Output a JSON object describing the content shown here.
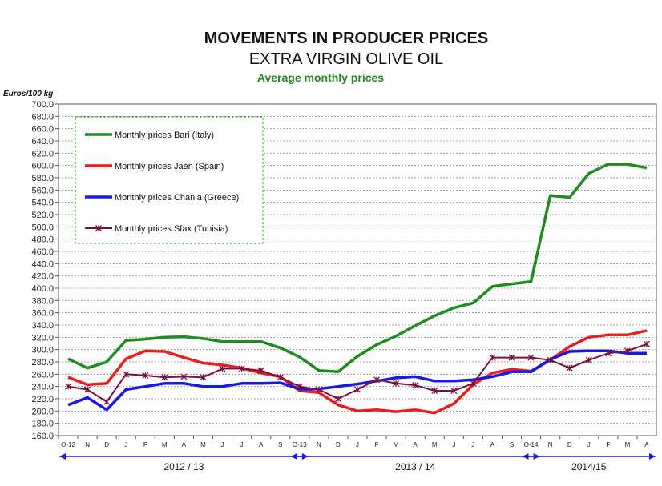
{
  "chart_data": {
    "type": "line",
    "title": "MOVEMENTS IN PRODUCER PRICES",
    "subtitle": "EXTRA VIRGIN OLIVE OIL",
    "subtitle2": "Average monthly prices",
    "ylabel": "Euros/100 kg",
    "ylim": [
      160,
      700
    ],
    "ytick_step": 20,
    "grid": true,
    "legend_position": "top-left",
    "x_labels": [
      "O-12",
      "N",
      "D",
      "J",
      "F",
      "M",
      "A",
      "M",
      "J",
      "J",
      "A",
      "S",
      "O-13",
      "N",
      "D",
      "J",
      "F",
      "M",
      "A",
      "M",
      "J",
      "J",
      "A",
      "S",
      "O-14",
      "N",
      "D",
      "J",
      "F",
      "M",
      "A"
    ],
    "periods": [
      {
        "label": "2012 / 13",
        "start": 0,
        "end": 12
      },
      {
        "label": "2013 / 14",
        "start": 12,
        "end": 24
      },
      {
        "label": "2014/15",
        "start": 24,
        "end": 30
      }
    ],
    "series": [
      {
        "name": "Monthly prices Bari (Italy)",
        "color": "#1f8c1f",
        "marker": "none",
        "values": [
          285,
          270,
          280,
          315,
          317,
          320,
          321,
          318,
          313,
          313,
          313,
          303,
          288,
          266,
          264,
          289,
          308,
          322,
          339,
          355,
          368,
          376,
          403,
          407,
          411,
          551,
          548,
          587,
          602,
          602,
          596
        ]
      },
      {
        "name": "Monthly prices Jaén (Spain)",
        "color": "#ee1c1c",
        "marker": "none",
        "values": [
          255,
          243,
          245,
          285,
          298,
          297,
          287,
          278,
          275,
          270,
          262,
          256,
          233,
          230,
          210,
          200,
          202,
          199,
          202,
          197,
          212,
          243,
          262,
          268,
          265,
          283,
          305,
          320,
          324,
          324,
          331
        ]
      },
      {
        "name": "Monthly prices Chania (Greece)",
        "color": "#1a1ae6",
        "marker": "none",
        "values": [
          210,
          222,
          202,
          235,
          240,
          245,
          245,
          240,
          240,
          245,
          245,
          246,
          236,
          236,
          240,
          244,
          249,
          254,
          256,
          249,
          249,
          251,
          256,
          264,
          264,
          284,
          297,
          298,
          298,
          294,
          294
        ]
      },
      {
        "name": "Monthly prices Sfax (Tunisia)",
        "color": "#7a1040",
        "marker": "star",
        "values": [
          240,
          235,
          215,
          260,
          258,
          255,
          256,
          255,
          269,
          269,
          266,
          255,
          240,
          235,
          220,
          235,
          251,
          245,
          242,
          233,
          233,
          245,
          287,
          287,
          287,
          283,
          270,
          283,
          294,
          298,
          309
        ]
      }
    ]
  }
}
